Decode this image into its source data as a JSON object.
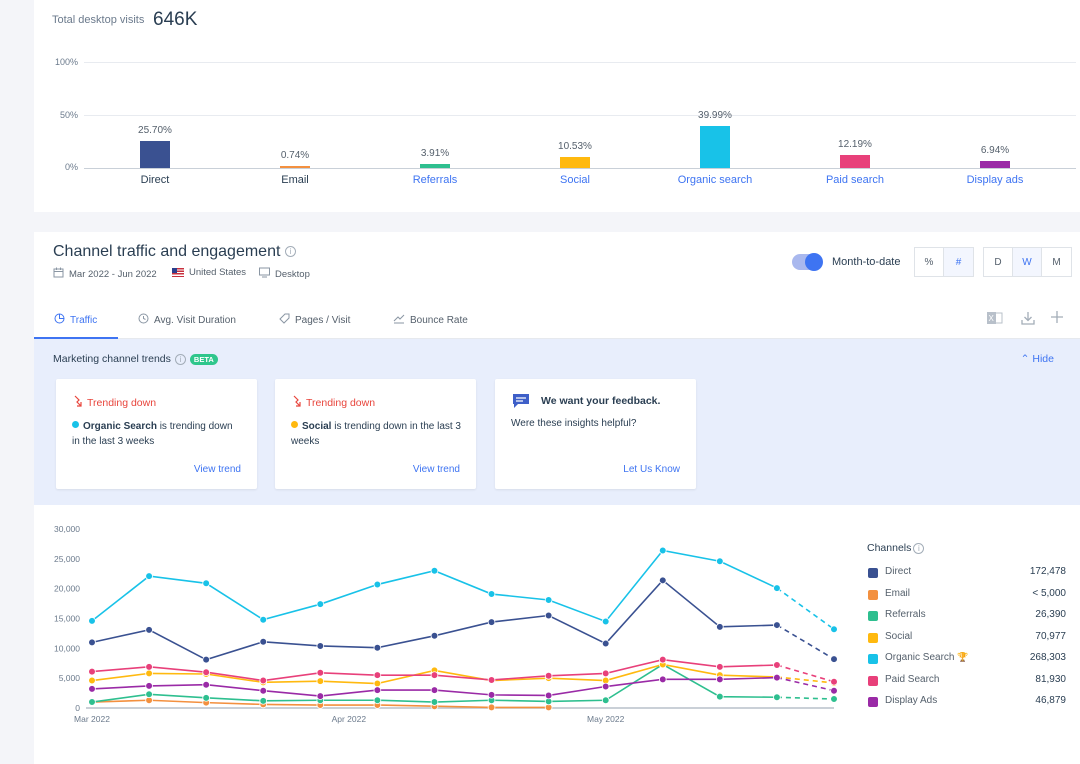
{
  "overview": {
    "total_label": "Total desktop visits",
    "total_value": "646K",
    "y_ticks": [
      "100%",
      "50%",
      "0%"
    ],
    "channels": [
      {
        "name": "Direct",
        "pct_label": "25.70%",
        "share": 25.7,
        "color": "#3a5191",
        "name_color": "#2a3e52"
      },
      {
        "name": "Email",
        "pct_label": "0.74%",
        "share": 0.74,
        "color": "#f3903f",
        "name_color": "#2a3e52"
      },
      {
        "name": "Referrals",
        "pct_label": "3.91%",
        "share": 3.91,
        "color": "#2ebf8f",
        "name_color": "#3e74f2"
      },
      {
        "name": "Social",
        "pct_label": "10.53%",
        "share": 10.53,
        "color": "#ffb90f",
        "name_color": "#3e74f2"
      },
      {
        "name": "Organic search",
        "pct_label": "39.99%",
        "share": 39.99,
        "color": "#18c2e8",
        "name_color": "#3e74f2"
      },
      {
        "name": "Paid search",
        "pct_label": "12.19%",
        "share": 12.19,
        "color": "#e8407a",
        "name_color": "#3e74f2"
      },
      {
        "name": "Display ads",
        "pct_label": "6.94%",
        "share": 6.94,
        "color": "#9a2aa6",
        "name_color": "#3e74f2"
      }
    ]
  },
  "section": {
    "title": "Channel traffic and engagement",
    "info_icon": "i",
    "date_range": "Mar 2022 - Jun 2022",
    "country": "United States",
    "device": "Desktop",
    "toggle_label": "Month-to-date",
    "toggle_on": true,
    "metric_buttons": [
      "%",
      "#"
    ],
    "metric_selected": "#",
    "granularity_buttons": [
      "D",
      "W",
      "M"
    ],
    "granularity_selected": "W"
  },
  "tabs": [
    {
      "label": "Traffic",
      "icon": "pie-icon",
      "active": true
    },
    {
      "label": "Avg. Visit Duration",
      "icon": "clock-icon",
      "active": false
    },
    {
      "label": "Pages / Visit",
      "icon": "tag-icon",
      "active": false
    },
    {
      "label": "Bounce Rate",
      "icon": "trend-icon",
      "active": false
    }
  ],
  "trends": {
    "title": "Marketing channel trends",
    "badge": "BETA",
    "hide_label": "Hide",
    "cards": [
      {
        "status": "Trending down",
        "channel": "Organic Search",
        "channel_color": "#18c2e8",
        "text": "is trending down in the last 3 weeks",
        "link": "View trend"
      },
      {
        "status": "Trending down",
        "channel": "Social",
        "channel_color": "#ffb90f",
        "text": "is trending down in the last 3 weeks",
        "link": "View trend"
      }
    ],
    "feedback": {
      "title": "We want your feedback.",
      "question": "Were these insights helpful?",
      "link": "Let Us Know"
    }
  },
  "chart_data": {
    "type": "line",
    "y_ticks": [
      "30,000",
      "25,000",
      "20,000",
      "15,000",
      "10,000",
      "5,000",
      "0"
    ],
    "ylim": [
      0,
      30000
    ],
    "x_tick_labels": [
      {
        "label": "Mar 2022",
        "index": 0
      },
      {
        "label": "Apr 2022",
        "index": 4.5
      },
      {
        "label": "May 2022",
        "index": 9
      }
    ],
    "num_points": 14,
    "projected_from_index": 12,
    "series": [
      {
        "name": "Direct",
        "color": "#3a5191",
        "values": [
          11000,
          13100,
          8100,
          11100,
          10400,
          10100,
          12100,
          14400,
          15500,
          10800,
          21400,
          13600,
          13900,
          8200
        ]
      },
      {
        "name": "Email",
        "color": "#f3903f",
        "values": [
          1000,
          1300,
          900,
          600,
          500,
          500,
          300,
          100,
          100,
          null,
          null,
          null,
          null,
          null
        ]
      },
      {
        "name": "Referrals",
        "color": "#2ebf8f",
        "values": [
          1000,
          2300,
          1700,
          1200,
          1300,
          1300,
          1000,
          1300,
          1100,
          1300,
          7300,
          1900,
          1800,
          1500
        ]
      },
      {
        "name": "Social",
        "color": "#ffb90f",
        "values": [
          4600,
          5800,
          5700,
          4300,
          4500,
          4100,
          6300,
          4600,
          5000,
          4600,
          7300,
          5500,
          5200,
          4200
        ]
      },
      {
        "name": "Organic Search",
        "color": "#18c2e8",
        "values": [
          14600,
          22100,
          20900,
          14800,
          17400,
          20700,
          23000,
          19100,
          18100,
          14500,
          26400,
          24600,
          20100,
          13200
        ]
      },
      {
        "name": "Paid Search",
        "color": "#e8407a",
        "values": [
          6100,
          6900,
          6000,
          4600,
          5900,
          5500,
          5500,
          4700,
          5400,
          5800,
          8100,
          6900,
          7200,
          4400
        ]
      },
      {
        "name": "Display Ads",
        "color": "#9a2aa6",
        "values": [
          3200,
          3700,
          3900,
          2900,
          2000,
          3000,
          3000,
          2200,
          2100,
          3600,
          4800,
          4800,
          5100,
          2900
        ]
      }
    ]
  },
  "legend": {
    "title": "Channels",
    "items": [
      {
        "name": "Direct",
        "value": "172,478",
        "color": "#3a5191"
      },
      {
        "name": "Email",
        "value": "< 5,000",
        "color": "#f3903f"
      },
      {
        "name": "Referrals",
        "value": "26,390",
        "color": "#2ebf8f"
      },
      {
        "name": "Social",
        "value": "70,977",
        "color": "#ffb90f"
      },
      {
        "name": "Organic Search",
        "value": "268,303",
        "color": "#18c2e8",
        "trophy": true
      },
      {
        "name": "Paid Search",
        "value": "81,930",
        "color": "#e8407a"
      },
      {
        "name": "Display Ads",
        "value": "46,879",
        "color": "#9a2aa6"
      }
    ]
  }
}
